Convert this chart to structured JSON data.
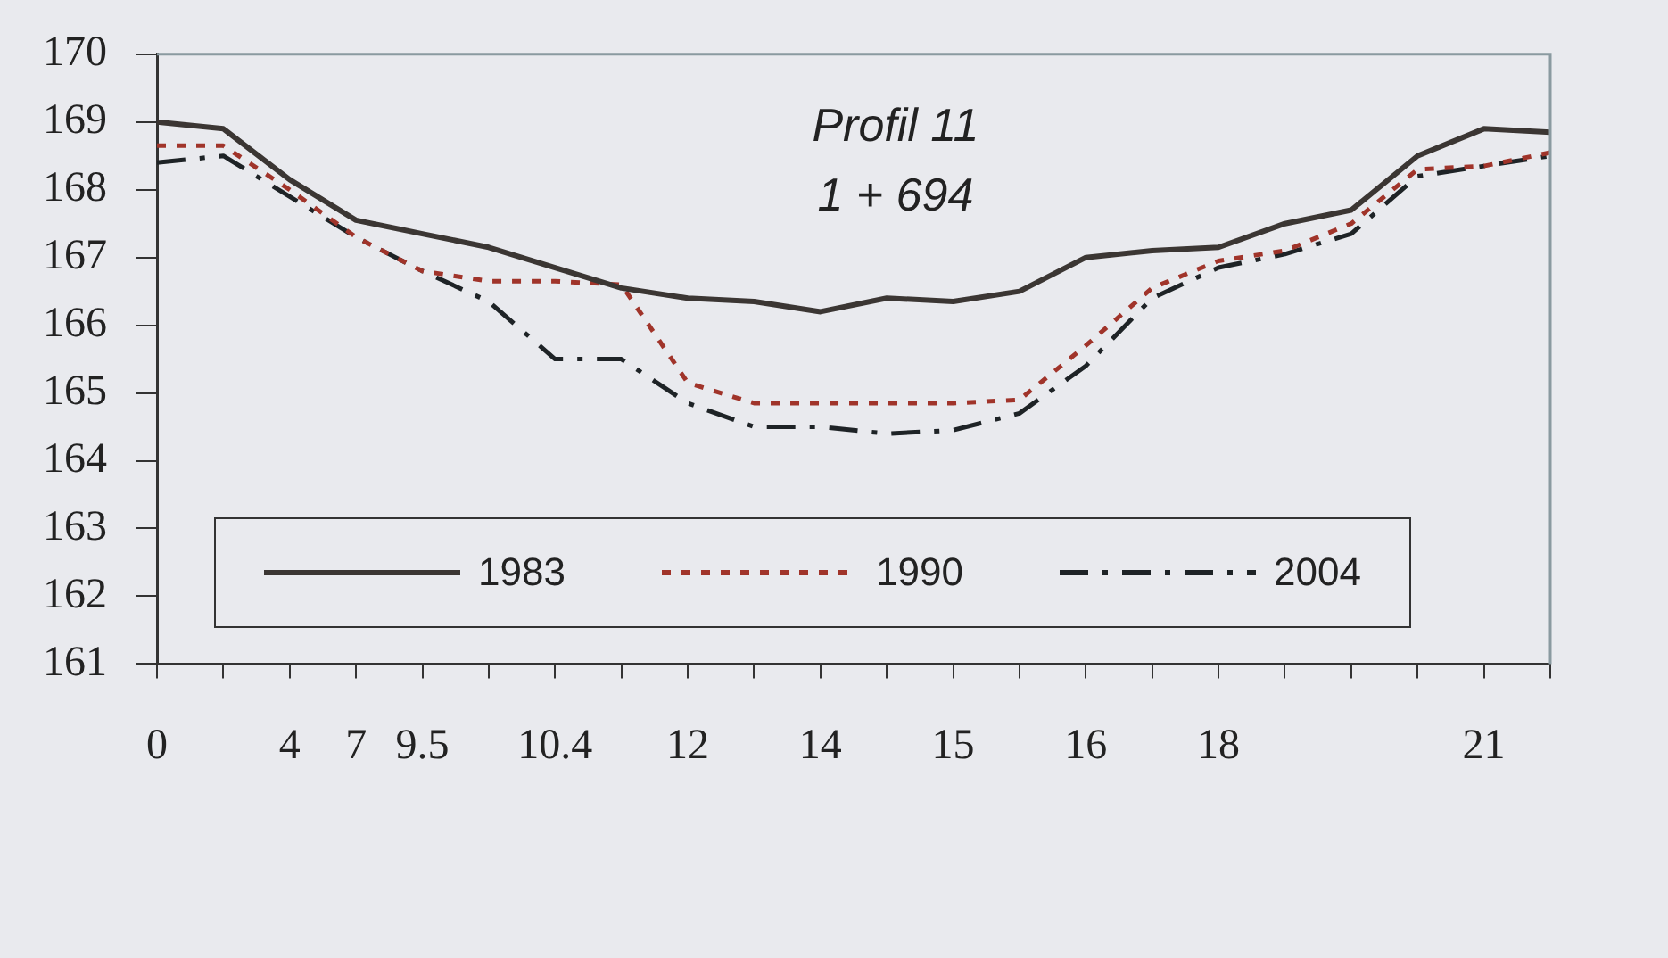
{
  "chart_data": {
    "type": "line",
    "title": "Profil 11",
    "subtitle": "1 + 694",
    "categories": [
      "0",
      null,
      "4",
      "7",
      "9.5",
      null,
      "10.4",
      null,
      "12",
      null,
      "14",
      null,
      "15",
      null,
      "16",
      null,
      "18",
      null,
      null,
      null,
      "21",
      null
    ],
    "ylim": [
      161,
      170
    ],
    "yticks": [
      161,
      162,
      163,
      164,
      165,
      166,
      167,
      168,
      169,
      170
    ],
    "grid": false,
    "legend": "bottom",
    "marker": "none",
    "series": [
      {
        "name": "1983",
        "color": "#3b3633",
        "line_style": "solid",
        "values": [
          169.0,
          168.9,
          168.15,
          167.55,
          167.35,
          167.15,
          166.85,
          166.55,
          166.4,
          166.35,
          166.2,
          166.4,
          166.35,
          166.5,
          167.0,
          167.1,
          167.15,
          167.5,
          167.7,
          168.5,
          168.9,
          168.85
        ]
      },
      {
        "name": "1990",
        "color": "#a0342a",
        "line_style": "dotted",
        "values": [
          168.65,
          168.65,
          168.0,
          167.3,
          166.8,
          166.65,
          166.65,
          166.6,
          165.15,
          164.85,
          164.85,
          164.85,
          164.85,
          164.9,
          165.7,
          166.55,
          166.95,
          167.1,
          167.5,
          168.3,
          168.35,
          168.55
        ]
      },
      {
        "name": "2004",
        "color": "#1e2326",
        "line_style": "dashed",
        "values": [
          168.4,
          168.5,
          167.9,
          167.3,
          166.8,
          166.35,
          165.5,
          165.5,
          164.85,
          164.5,
          164.5,
          164.4,
          164.45,
          164.7,
          165.4,
          166.4,
          166.85,
          167.05,
          167.35,
          168.2,
          168.35,
          168.5
        ]
      }
    ]
  }
}
